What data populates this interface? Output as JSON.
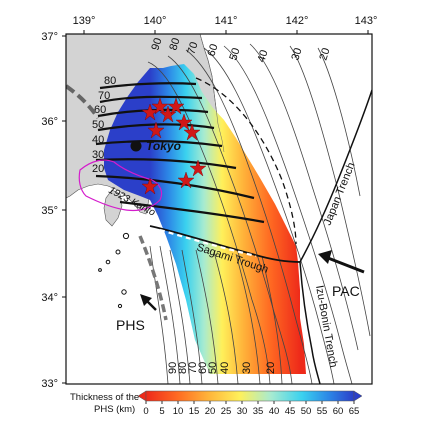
{
  "map": {
    "lon_ticks": [
      "139°",
      "140°",
      "141°",
      "142°",
      "143°"
    ],
    "lat_ticks": [
      "37°",
      "36°",
      "35°",
      "34°",
      "33°"
    ],
    "lon_range": [
      138.5,
      143.0
    ],
    "lat_range": [
      33.0,
      37.0
    ],
    "slab_contours_upper": [
      "20",
      "30",
      "40",
      "50",
      "60",
      "70",
      "80"
    ],
    "slab_contours_top": [
      "90",
      "80",
      "70",
      "60",
      "50",
      "40",
      "30",
      "20"
    ],
    "slab_contours_bottom": [
      "90",
      "80",
      "70",
      "60",
      "50",
      "40",
      "30",
      "20"
    ],
    "labels": {
      "tokyo": "Tokyo",
      "kanto_1923": "1923 Kanto",
      "sagami": "Sagami Trough",
      "japan_trench": "Japan Trench",
      "izu_bonin": "Izu-Bonin Trench",
      "pac": "PAC",
      "phs": "PHS"
    }
  },
  "colorbar": {
    "title_line1": "Thickness of the",
    "title_line2": "PHS (km)",
    "ticks": [
      "0",
      "5",
      "10",
      "15",
      "20",
      "25",
      "30",
      "35",
      "40",
      "45",
      "50",
      "55",
      "60",
      "65"
    ],
    "range": [
      0,
      65
    ],
    "unit": "km"
  },
  "colors": {
    "land": "#d4d4d4",
    "thin": "#ee2a1a",
    "mid": "#ffee55",
    "thick": "#2a3cc8"
  }
}
